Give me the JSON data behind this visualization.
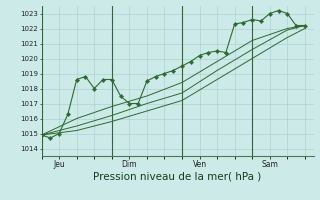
{
  "bg_color": "#cceae8",
  "grid_color": "#aacccc",
  "line_color": "#2d6a2d",
  "marker_color": "#2d6a2d",
  "title": "Pression niveau de la mer( hPa )",
  "title_fontsize": 7.5,
  "ylabel_values": [
    1014,
    1015,
    1016,
    1017,
    1018,
    1019,
    1020,
    1021,
    1022,
    1023
  ],
  "ylim": [
    1013.5,
    1023.5
  ],
  "day_labels": [
    "Jeu",
    "Dim",
    "Ven",
    "Sam"
  ],
  "day_positions": [
    0,
    48,
    96,
    144
  ],
  "xlim": [
    0,
    186
  ],
  "series1": [
    [
      0,
      1014.9
    ],
    [
      6,
      1014.7
    ],
    [
      12,
      1015.0
    ],
    [
      18,
      1016.3
    ],
    [
      24,
      1018.6
    ],
    [
      30,
      1018.8
    ],
    [
      36,
      1018.0
    ],
    [
      42,
      1018.6
    ],
    [
      48,
      1018.6
    ],
    [
      54,
      1017.5
    ],
    [
      60,
      1017.0
    ],
    [
      66,
      1017.0
    ],
    [
      72,
      1018.5
    ],
    [
      78,
      1018.8
    ],
    [
      84,
      1019.0
    ],
    [
      90,
      1019.2
    ],
    [
      96,
      1019.5
    ],
    [
      102,
      1019.8
    ],
    [
      108,
      1020.2
    ],
    [
      114,
      1020.4
    ],
    [
      120,
      1020.5
    ],
    [
      126,
      1020.4
    ],
    [
      132,
      1022.3
    ],
    [
      138,
      1022.4
    ],
    [
      144,
      1022.6
    ],
    [
      150,
      1022.5
    ],
    [
      156,
      1023.0
    ],
    [
      162,
      1023.2
    ],
    [
      168,
      1023.0
    ],
    [
      174,
      1022.2
    ],
    [
      180,
      1022.2
    ]
  ],
  "series2": [
    [
      0,
      1014.9
    ],
    [
      24,
      1016.0
    ],
    [
      48,
      1016.8
    ],
    [
      72,
      1017.5
    ],
    [
      96,
      1018.4
    ],
    [
      120,
      1019.8
    ],
    [
      144,
      1021.2
    ],
    [
      168,
      1022.0
    ],
    [
      180,
      1022.2
    ]
  ],
  "series3": [
    [
      0,
      1014.9
    ],
    [
      24,
      1015.5
    ],
    [
      48,
      1016.2
    ],
    [
      72,
      1017.0
    ],
    [
      96,
      1017.7
    ],
    [
      120,
      1019.2
    ],
    [
      144,
      1020.6
    ],
    [
      168,
      1021.9
    ],
    [
      180,
      1022.2
    ]
  ],
  "series4": [
    [
      0,
      1014.9
    ],
    [
      24,
      1015.2
    ],
    [
      48,
      1015.8
    ],
    [
      72,
      1016.5
    ],
    [
      96,
      1017.2
    ],
    [
      120,
      1018.6
    ],
    [
      144,
      1020.0
    ],
    [
      168,
      1021.4
    ],
    [
      180,
      1022.0
    ]
  ]
}
